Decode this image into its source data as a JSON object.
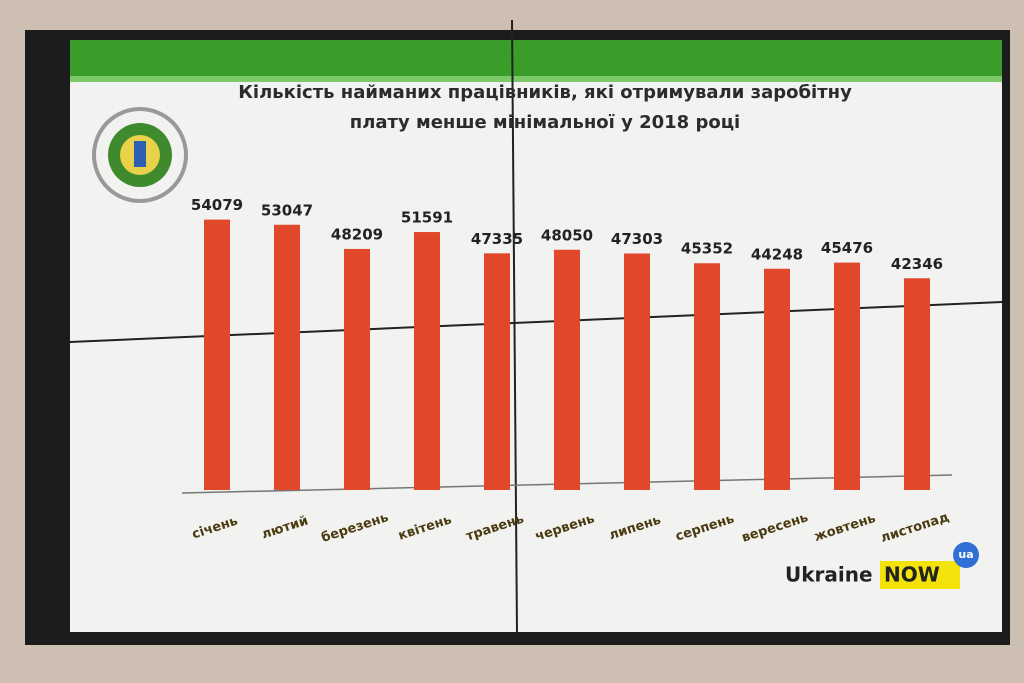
{
  "chart_data": {
    "type": "bar",
    "title": "Кількість найманих працівників, які отримували заробітну плату менше мінімальної у 2018 році",
    "categories": [
      "січень",
      "лютий",
      "березень",
      "квітень",
      "травень",
      "червень",
      "липень",
      "серпень",
      "вересень",
      "жовтень",
      "листопад"
    ],
    "values": [
      54079,
      53047,
      48209,
      51591,
      47335,
      48050,
      47303,
      45352,
      44248,
      45476,
      42346
    ],
    "color": "#e0472b",
    "ylim": [
      0,
      60000
    ]
  },
  "branding": {
    "name": "Ukraine",
    "highlight": "NOW",
    "badge": "ua"
  }
}
